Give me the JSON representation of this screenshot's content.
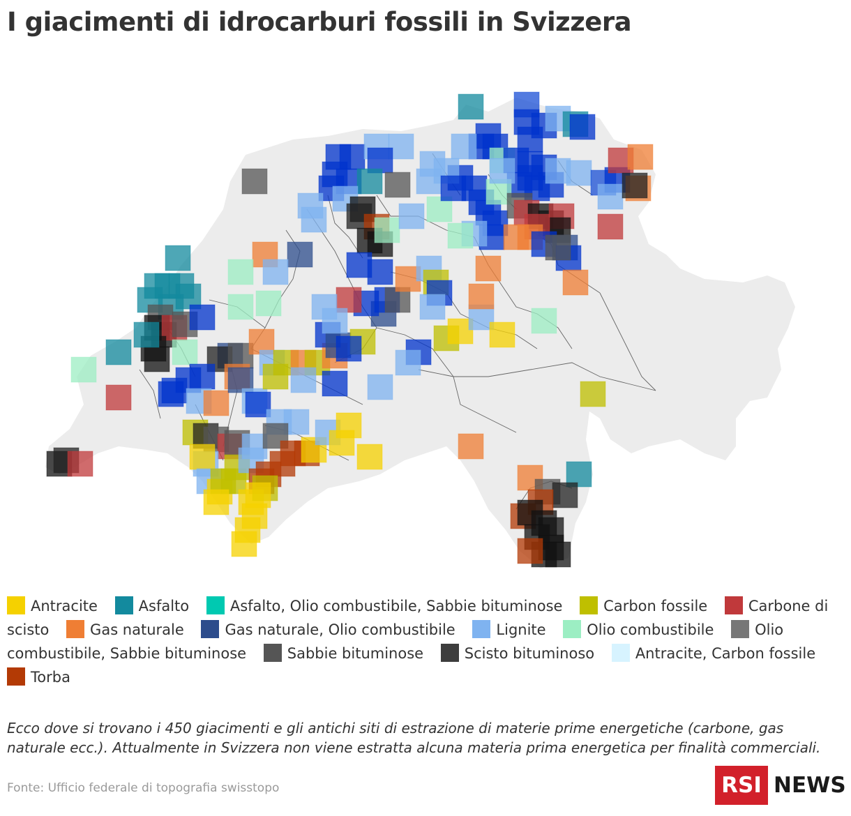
{
  "title": "I giacimenti di idrocarburi fossili in Svizzera",
  "legend": [
    {
      "label": "Antracite",
      "color": "#f5d100"
    },
    {
      "label": "Asfalto",
      "color": "#138a9e"
    },
    {
      "label": "Asfalto, Olio combustibile, Sabbie bituminose",
      "color": "#00c9b1"
    },
    {
      "label": "Carbon fossile",
      "color": "#bfbf00"
    },
    {
      "label": "Carbone di scisto",
      "color": "#c0393b"
    },
    {
      "label": "Gas naturale",
      "color": "#ef7e34"
    },
    {
      "label": "Gas naturale, Olio combustibile",
      "color": "#2c4c8c"
    },
    {
      "label": "Lignite",
      "color": "#7fb3f0"
    },
    {
      "label": "Olio combustibile",
      "color": "#9ceec3"
    },
    {
      "label": "Olio combustibile, Sabbie bituminose",
      "color": "#777777"
    },
    {
      "label": "Sabbie bituminose",
      "color": "#555555"
    },
    {
      "label": "Scisto bituminoso",
      "color": "#3d3d3d"
    },
    {
      "label": "Antracite, Carbon fossile",
      "color": "#d7f3ff"
    },
    {
      "label": "Torba",
      "color": "#b33a05"
    }
  ],
  "description": "Ecco dove si trovano i 450 giacimenti e gli antichi siti di estrazione di materie prime energetiche (carbone, gas naturale ecc.). Attualmente in Svizzera non viene estratta alcuna materia prima energetica per finalità commerciali.",
  "source": "Fonte: Ufficio federale di topografia swisstopo",
  "logo": {
    "box": "RSI",
    "text": "NEWS"
  }
}
